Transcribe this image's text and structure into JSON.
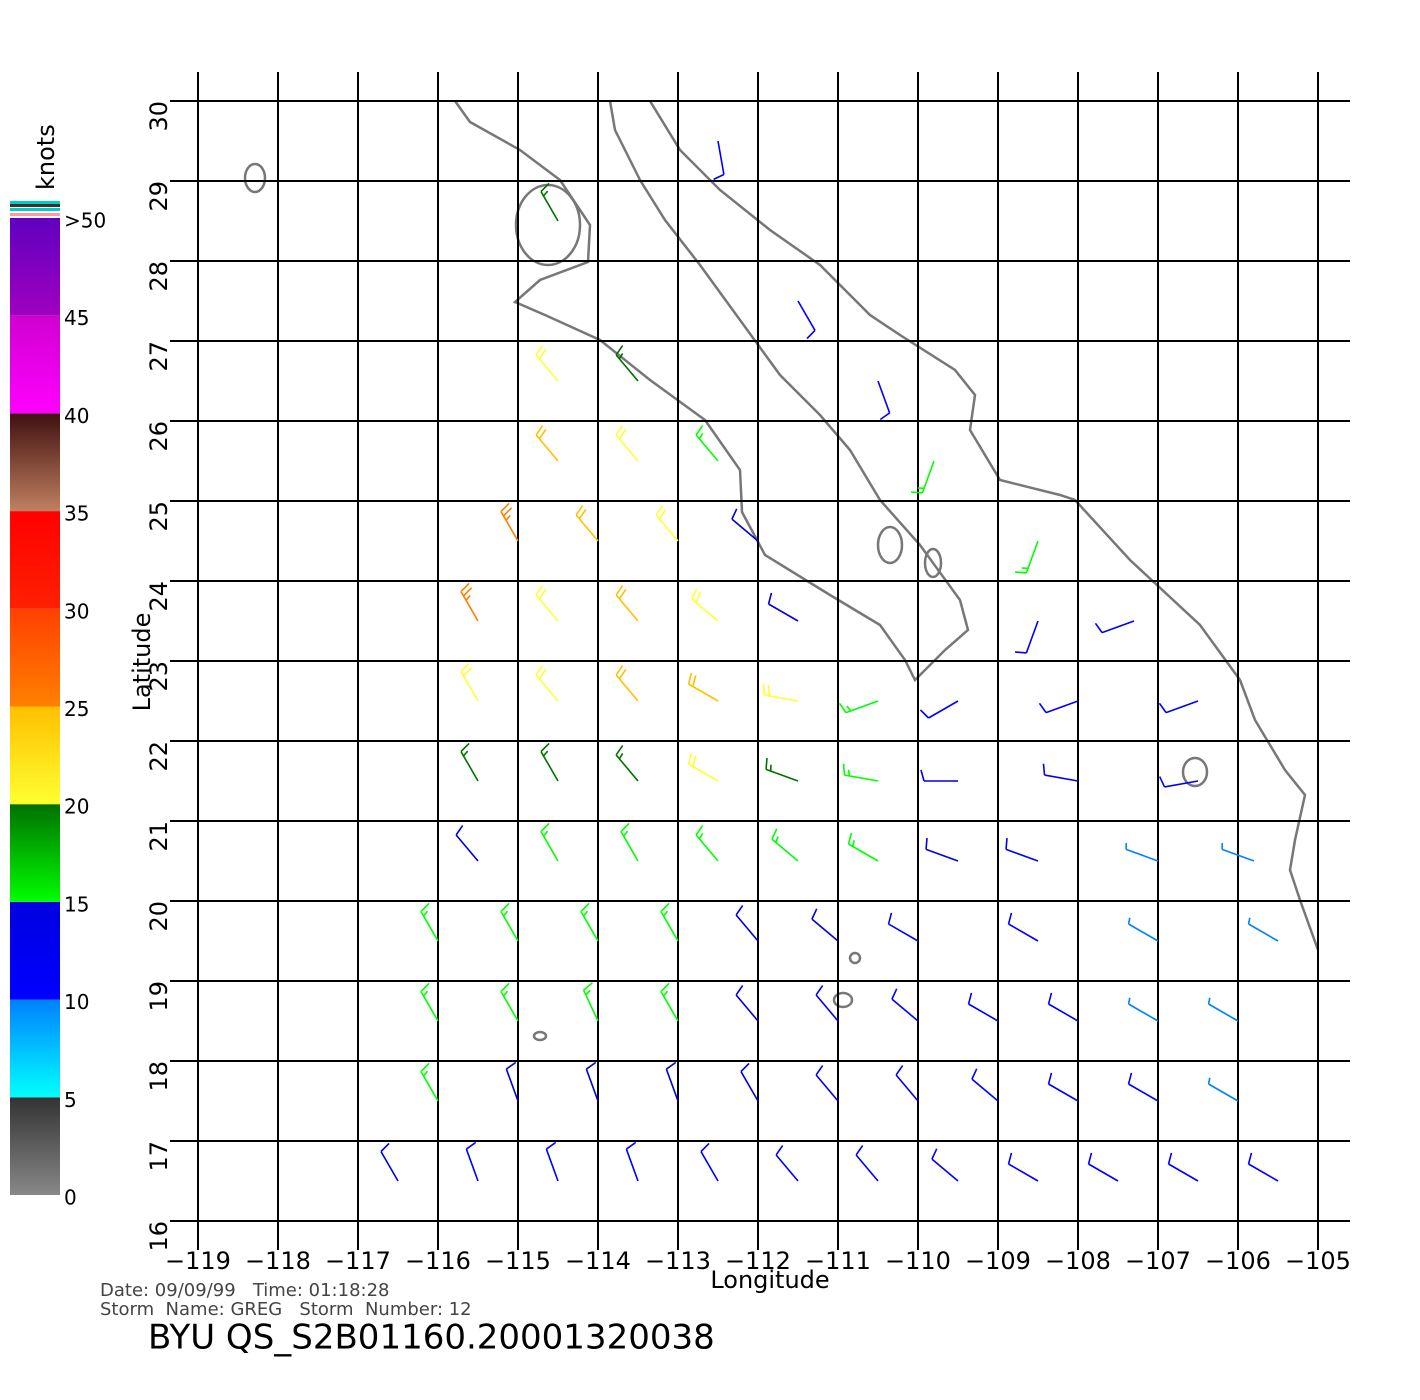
{
  "chart_data": {
    "type": "wind-barb",
    "xlabel": "Longitude",
    "ylabel": "Latitude",
    "xlim": [
      -119,
      -105
    ],
    "ylim": [
      16,
      30
    ],
    "xticks": [
      {
        "value": -119,
        "label": "−119"
      },
      {
        "value": -118,
        "label": "−118"
      },
      {
        "value": -117,
        "label": "−117"
      },
      {
        "value": -116,
        "label": "−116"
      },
      {
        "value": -115,
        "label": "−115"
      },
      {
        "value": -114,
        "label": "−114"
      },
      {
        "value": -113,
        "label": "−113"
      },
      {
        "value": -112,
        "label": "−112"
      },
      {
        "value": -111,
        "label": "−111"
      },
      {
        "value": -110,
        "label": "−110"
      },
      {
        "value": -109,
        "label": "−109"
      },
      {
        "value": -108,
        "label": "−108"
      },
      {
        "value": -107,
        "label": "−107"
      },
      {
        "value": -106,
        "label": "−106"
      },
      {
        "value": -105,
        "label": "−105"
      }
    ],
    "yticks": [
      16,
      17,
      18,
      19,
      20,
      21,
      22,
      23,
      24,
      25,
      26,
      27,
      28,
      29,
      30
    ],
    "grid": true,
    "colorbar": {
      "label": "knots",
      "ticks": [
        0,
        5,
        10,
        15,
        20,
        25,
        30,
        35,
        40,
        45,
        {
          "value": 50,
          "label": ">50"
        }
      ],
      "colors": [
        [
          "#888888",
          "#333333"
        ],
        [
          "#00ffff",
          "#0080ff"
        ],
        [
          "#0000ff",
          "#0000e0"
        ],
        [
          "#00ff00",
          "#007000"
        ],
        [
          "#ffff30",
          "#ffc000"
        ],
        [
          "#ff8000",
          "#ff4000"
        ],
        [
          "#ff2000",
          "#ff0000"
        ],
        [
          "#c08060",
          "#401010"
        ],
        [
          "#ff00ff",
          "#d000d0"
        ],
        [
          "#a000c0",
          "#6000c0"
        ]
      ]
    },
    "winds": [
      {
        "lon": -116.5,
        "lat": 16.5,
        "speed": 13,
        "dir": 330
      },
      {
        "lon": -115.5,
        "lat": 16.5,
        "speed": 12,
        "dir": 340
      },
      {
        "lon": -114.5,
        "lat": 16.5,
        "speed": 12,
        "dir": 340
      },
      {
        "lon": -113.5,
        "lat": 16.5,
        "speed": 12,
        "dir": 340
      },
      {
        "lon": -112.5,
        "lat": 16.5,
        "speed": 12,
        "dir": 330
      },
      {
        "lon": -111.5,
        "lat": 16.5,
        "speed": 12,
        "dir": 320
      },
      {
        "lon": -110.5,
        "lat": 16.5,
        "speed": 12,
        "dir": 320
      },
      {
        "lon": -109.5,
        "lat": 16.5,
        "speed": 12,
        "dir": 310
      },
      {
        "lon": -108.5,
        "lat": 16.5,
        "speed": 11,
        "dir": 300
      },
      {
        "lon": -107.5,
        "lat": 16.5,
        "speed": 11,
        "dir": 300
      },
      {
        "lon": -106.5,
        "lat": 16.5,
        "speed": 10,
        "dir": 300
      },
      {
        "lon": -105.5,
        "lat": 16.5,
        "speed": 10,
        "dir": 300
      },
      {
        "lon": -116,
        "lat": 17.5,
        "speed": 15,
        "dir": 330
      },
      {
        "lon": -115,
        "lat": 17.5,
        "speed": 13,
        "dir": 340
      },
      {
        "lon": -114,
        "lat": 17.5,
        "speed": 13,
        "dir": 340
      },
      {
        "lon": -113,
        "lat": 17.5,
        "speed": 13,
        "dir": 340
      },
      {
        "lon": -112,
        "lat": 17.5,
        "speed": 13,
        "dir": 330
      },
      {
        "lon": -111,
        "lat": 17.5,
        "speed": 12,
        "dir": 320
      },
      {
        "lon": -110,
        "lat": 17.5,
        "speed": 12,
        "dir": 320
      },
      {
        "lon": -109,
        "lat": 17.5,
        "speed": 11,
        "dir": 310
      },
      {
        "lon": -108,
        "lat": 17.5,
        "speed": 11,
        "dir": 300
      },
      {
        "lon": -107,
        "lat": 17.5,
        "speed": 10,
        "dir": 300
      },
      {
        "lon": -106,
        "lat": 17.5,
        "speed": 9,
        "dir": 300
      },
      {
        "lon": -116,
        "lat": 18.5,
        "speed": 16,
        "dir": 330
      },
      {
        "lon": -115,
        "lat": 18.5,
        "speed": 16,
        "dir": 330
      },
      {
        "lon": -114,
        "lat": 18.5,
        "speed": 15,
        "dir": 335
      },
      {
        "lon": -113,
        "lat": 18.5,
        "speed": 15,
        "dir": 330
      },
      {
        "lon": -112,
        "lat": 18.5,
        "speed": 13,
        "dir": 320
      },
      {
        "lon": -111,
        "lat": 18.5,
        "speed": 12,
        "dir": 320
      },
      {
        "lon": -110,
        "lat": 18.5,
        "speed": 12,
        "dir": 310
      },
      {
        "lon": -109,
        "lat": 18.5,
        "speed": 11,
        "dir": 300
      },
      {
        "lon": -108,
        "lat": 18.5,
        "speed": 10,
        "dir": 300
      },
      {
        "lon": -107,
        "lat": 18.5,
        "speed": 9,
        "dir": 300
      },
      {
        "lon": -106,
        "lat": 18.5,
        "speed": 9,
        "dir": 300
      },
      {
        "lon": -116,
        "lat": 19.5,
        "speed": 16,
        "dir": 330
      },
      {
        "lon": -115,
        "lat": 19.5,
        "speed": 17,
        "dir": 330
      },
      {
        "lon": -114,
        "lat": 19.5,
        "speed": 16,
        "dir": 330
      },
      {
        "lon": -113,
        "lat": 19.5,
        "speed": 15,
        "dir": 330
      },
      {
        "lon": -112,
        "lat": 19.5,
        "speed": 14,
        "dir": 320
      },
      {
        "lon": -111,
        "lat": 19.5,
        "speed": 13,
        "dir": 310
      },
      {
        "lon": -110,
        "lat": 19.5,
        "speed": 12,
        "dir": 300
      },
      {
        "lon": -108.5,
        "lat": 19.5,
        "speed": 11,
        "dir": 300
      },
      {
        "lon": -107,
        "lat": 19.5,
        "speed": 9,
        "dir": 300
      },
      {
        "lon": -105.5,
        "lat": 19.5,
        "speed": 8,
        "dir": 300
      },
      {
        "lon": -115.5,
        "lat": 20.5,
        "speed": 14,
        "dir": 320
      },
      {
        "lon": -114.5,
        "lat": 20.5,
        "speed": 17,
        "dir": 330
      },
      {
        "lon": -113.5,
        "lat": 20.5,
        "speed": 17,
        "dir": 330
      },
      {
        "lon": -112.5,
        "lat": 20.5,
        "speed": 17,
        "dir": 320
      },
      {
        "lon": -111.5,
        "lat": 20.5,
        "speed": 15,
        "dir": 310
      },
      {
        "lon": -110.5,
        "lat": 20.5,
        "speed": 15,
        "dir": 300
      },
      {
        "lon": -109.5,
        "lat": 20.5,
        "speed": 13,
        "dir": 290
      },
      {
        "lon": -108.5,
        "lat": 20.5,
        "speed": 12,
        "dir": 290
      },
      {
        "lon": -107,
        "lat": 20.5,
        "speed": 9,
        "dir": 290
      },
      {
        "lon": -105.8,
        "lat": 20.5,
        "speed": 9,
        "dir": 290
      },
      {
        "lon": -115.5,
        "lat": 21.5,
        "speed": 18,
        "dir": 330
      },
      {
        "lon": -114.5,
        "lat": 21.5,
        "speed": 19,
        "dir": 330
      },
      {
        "lon": -113.5,
        "lat": 21.5,
        "speed": 18,
        "dir": 320
      },
      {
        "lon": -112.5,
        "lat": 21.5,
        "speed": 20,
        "dir": 300
      },
      {
        "lon": -111.5,
        "lat": 21.5,
        "speed": 18,
        "dir": 290
      },
      {
        "lon": -110.5,
        "lat": 21.5,
        "speed": 17,
        "dir": 280
      },
      {
        "lon": -109.5,
        "lat": 21.5,
        "speed": 13,
        "dir": 270
      },
      {
        "lon": -108,
        "lat": 21.5,
        "speed": 12,
        "dir": 280
      },
      {
        "lon": -106.5,
        "lat": 21.5,
        "speed": 11,
        "dir": 260
      },
      {
        "lon": -115.5,
        "lat": 22.5,
        "speed": 21,
        "dir": 330
      },
      {
        "lon": -114.5,
        "lat": 22.5,
        "speed": 21,
        "dir": 320
      },
      {
        "lon": -113.5,
        "lat": 22.5,
        "speed": 24,
        "dir": 320
      },
      {
        "lon": -112.5,
        "lat": 22.5,
        "speed": 23,
        "dir": 300
      },
      {
        "lon": -111.5,
        "lat": 22.5,
        "speed": 20,
        "dir": 280
      },
      {
        "lon": -110.5,
        "lat": 22.5,
        "speed": 17,
        "dir": 250
      },
      {
        "lon": -109.5,
        "lat": 22.5,
        "speed": 12,
        "dir": 240
      },
      {
        "lon": -108,
        "lat": 22.5,
        "speed": 12,
        "dir": 250
      },
      {
        "lon": -106.5,
        "lat": 22.5,
        "speed": 11,
        "dir": 250
      },
      {
        "lon": -115.5,
        "lat": 23.5,
        "speed": 26,
        "dir": 330
      },
      {
        "lon": -114.5,
        "lat": 23.5,
        "speed": 22,
        "dir": 320
      },
      {
        "lon": -113.5,
        "lat": 23.5,
        "speed": 23,
        "dir": 320
      },
      {
        "lon": -112.5,
        "lat": 23.5,
        "speed": 22,
        "dir": 310
      },
      {
        "lon": -111.5,
        "lat": 23.5,
        "speed": 14,
        "dir": 300
      },
      {
        "lon": -108.5,
        "lat": 23.5,
        "speed": 12,
        "dir": 200
      },
      {
        "lon": -107.3,
        "lat": 23.5,
        "speed": 12,
        "dir": 250
      },
      {
        "lon": -115,
        "lat": 24.5,
        "speed": 27,
        "dir": 330
      },
      {
        "lon": -114,
        "lat": 24.5,
        "speed": 23,
        "dir": 320
      },
      {
        "lon": -113,
        "lat": 24.5,
        "speed": 22,
        "dir": 320
      },
      {
        "lon": -112,
        "lat": 24.5,
        "speed": 13,
        "dir": 310
      },
      {
        "lon": -108.5,
        "lat": 24.5,
        "speed": 17,
        "dir": 200
      },
      {
        "lon": -114.5,
        "lat": 25.5,
        "speed": 23,
        "dir": 320
      },
      {
        "lon": -113.5,
        "lat": 25.5,
        "speed": 22,
        "dir": 320
      },
      {
        "lon": -112.5,
        "lat": 25.5,
        "speed": 17,
        "dir": 320
      },
      {
        "lon": -109.8,
        "lat": 25.5,
        "speed": 16,
        "dir": 200
      },
      {
        "lon": -114.5,
        "lat": 26.5,
        "speed": 22,
        "dir": 320
      },
      {
        "lon": -113.5,
        "lat": 26.5,
        "speed": 18,
        "dir": 320
      },
      {
        "lon": -110.5,
        "lat": 26.5,
        "speed": 12,
        "dir": 160
      },
      {
        "lon": -111.5,
        "lat": 27.5,
        "speed": 11,
        "dir": 150
      },
      {
        "lon": -114.5,
        "lat": 28.5,
        "speed": 18,
        "dir": 330
      },
      {
        "lon": -112.5,
        "lat": 29.5,
        "speed": 12,
        "dir": 170
      }
    ]
  },
  "footer": {
    "date_line": "Date: 09/09/99   Time: 01:18:28",
    "storm_line": "Storm  Name: GREG   Storm  Number: 12",
    "file_line": "BYU  QS_S2B01160.20001320038"
  }
}
